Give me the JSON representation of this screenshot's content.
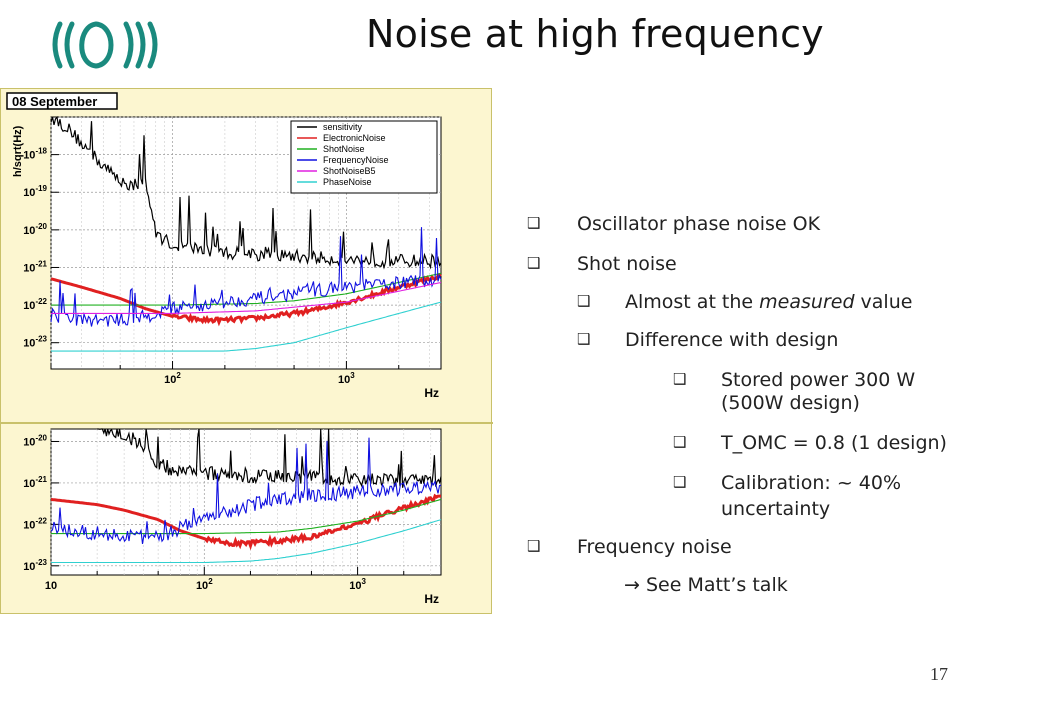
{
  "slide": {
    "title": "Noise at high frequency",
    "page_number": "17"
  },
  "bullets": [
    {
      "id": "b1",
      "level": 0,
      "text": "Oscillator phase noise OK"
    },
    {
      "id": "b2",
      "level": 0,
      "text": "Shot noise"
    },
    {
      "id": "b3",
      "level": 1,
      "text_pre": "Almost at the ",
      "text_em": "measured",
      "text_post": " value"
    },
    {
      "id": "b4",
      "level": 1,
      "text": "Difference with design"
    },
    {
      "id": "b5",
      "level": 2,
      "text": "Stored power 300 W",
      "text2": "(500W design)"
    },
    {
      "id": "b6",
      "level": 2,
      "text": "T_OMC = 0.8 (1 design)"
    },
    {
      "id": "b7",
      "level": 2,
      "text": "Calibration: ~ 40%",
      "text2": "uncertainty"
    },
    {
      "id": "b8",
      "level": 0,
      "text": "Frequency noise"
    },
    {
      "id": "b9",
      "level": 3,
      "text": "→ See Matt’s talk"
    }
  ],
  "chart_data": [
    {
      "type": "line",
      "title": "08 September",
      "xlabel": "Hz",
      "ylabel": "h/sqrt(Hz)",
      "xscale": "log",
      "yscale": "log",
      "xlim": [
        20,
        3500
      ],
      "ylim": [
        2e-24,
        1e-17
      ],
      "yticks": [
        "10^-18",
        "10^-19",
        "10^-20",
        "10^-21",
        "10^-22",
        "10^-23"
      ],
      "xticks": [
        "10^2",
        "10^3"
      ],
      "grid": true,
      "legend_position": "top-right",
      "series": [
        {
          "name": "sensitivity",
          "color": "#000000",
          "x": [
            20,
            25,
            30,
            40,
            50,
            60,
            70,
            80,
            100,
            150,
            200,
            300,
            500,
            700,
            1000,
            1500,
            2000,
            3000,
            3500
          ],
          "y": [
            1e-17,
            5e-18,
            2e-18,
            5e-19,
            2e-19,
            1.5e-19,
            2e-19,
            8e-21,
            4e-21,
            3e-21,
            2.5e-21,
            2.2e-21,
            2e-21,
            1.8e-21,
            1.6e-21,
            1.5e-21,
            1.5e-21,
            1.5e-21,
            1.6e-21
          ]
        },
        {
          "name": "ElectronicNoise",
          "color": "#e02020",
          "x": [
            20,
            30,
            50,
            70,
            100,
            150,
            200,
            300,
            500,
            700,
            1000,
            1500,
            2000,
            3000,
            3500
          ],
          "y": [
            5e-22,
            3e-22,
            1.5e-22,
            8e-23,
            5e-23,
            4e-23,
            4e-23,
            4.5e-23,
            6e-23,
            8e-23,
            1.2e-22,
            2e-22,
            3e-22,
            5e-22,
            6e-22
          ]
        },
        {
          "name": "ShotNoise",
          "color": "#20b020",
          "x": [
            20,
            100,
            300,
            500,
            1000,
            2000,
            3500
          ],
          "y": [
            1e-22,
            1e-22,
            1.1e-22,
            1.3e-22,
            2e-22,
            4e-22,
            7e-22
          ]
        },
        {
          "name": "FrequencyNoise",
          "color": "#1010e0",
          "x": [
            20,
            30,
            50,
            70,
            100,
            150,
            200,
            300,
            500,
            700,
            1000,
            1500,
            2000,
            3000,
            3500
          ],
          "y": [
            5e-23,
            4e-23,
            4e-23,
            5e-23,
            8e-23,
            1e-22,
            1.2e-22,
            1.5e-22,
            2e-22,
            2.5e-22,
            3e-22,
            3.5e-22,
            4e-22,
            4.5e-22,
            5e-22
          ]
        },
        {
          "name": "ShotNoiseB5",
          "color": "#e020e0",
          "x": [
            20,
            100,
            300,
            1000,
            3500
          ],
          "y": [
            6e-23,
            6e-23,
            7e-23,
            1.2e-22,
            4e-22
          ]
        },
        {
          "name": "PhaseNoise",
          "color": "#30d0d0",
          "x": [
            20,
            100,
            200,
            300,
            500,
            1000,
            2000,
            3500
          ],
          "y": [
            6e-24,
            6e-24,
            6e-24,
            7e-24,
            1e-23,
            2.5e-23,
            6e-23,
            1.2e-22
          ]
        }
      ]
    },
    {
      "type": "line",
      "xlabel": "Hz",
      "xscale": "log",
      "yscale": "log",
      "xlim": [
        10,
        3500
      ],
      "ylim": [
        6e-24,
        2e-20
      ],
      "yticks": [
        "10^-20",
        "10^-21",
        "10^-22",
        "10^-23"
      ],
      "xticks": [
        "10",
        "10^2",
        "10^3"
      ],
      "grid": true,
      "series": [
        {
          "color": "#000000",
          "x": [
            20,
            30,
            40,
            50,
            60,
            80,
            100,
            150,
            200,
            300,
            500,
            1000,
            2000,
            3500
          ],
          "y": [
            2e-20,
            1.5e-20,
            8e-21,
            3e-21,
            2e-21,
            2e-21,
            1.8e-21,
            1.6e-21,
            1.5e-21,
            1.5e-21,
            1.3e-21,
            1.2e-21,
            1.1e-21,
            1.2e-21
          ]
        },
        {
          "color": "#e02020",
          "x": [
            10,
            20,
            30,
            50,
            70,
            100,
            150,
            200,
            300,
            500,
            700,
            1000,
            1500,
            2000,
            3000,
            3500
          ],
          "y": [
            4e-22,
            3e-22,
            2.2e-22,
            1.3e-22,
            7e-23,
            4.5e-23,
            3.5e-23,
            3.5e-23,
            4e-23,
            5e-23,
            7e-23,
            1e-22,
            1.8e-22,
            2.5e-22,
            4e-22,
            5e-22
          ]
        },
        {
          "color": "#20b020",
          "x": [
            10,
            100,
            300,
            500,
            1000,
            2000,
            3500
          ],
          "y": [
            6e-23,
            6e-23,
            6.5e-23,
            8e-23,
            1.2e-22,
            2.2e-22,
            4e-22
          ]
        },
        {
          "color": "#1010e0",
          "x": [
            10,
            20,
            30,
            50,
            70,
            100,
            150,
            200,
            300,
            500,
            1000,
            2000,
            3500
          ],
          "y": [
            8e-23,
            6e-23,
            5e-23,
            5e-23,
            8e-23,
            1.5e-22,
            2e-22,
            3e-22,
            4e-22,
            5e-22,
            6e-22,
            7e-22,
            8e-22
          ]
        },
        {
          "color": "#30d0d0",
          "x": [
            10,
            100,
            200,
            300,
            500,
            1000,
            2000,
            3500
          ],
          "y": [
            1.2e-23,
            1.2e-23,
            1.3e-23,
            1.5e-23,
            2e-23,
            3.5e-23,
            7e-23,
            1.3e-22
          ]
        }
      ]
    }
  ],
  "colors": {
    "figure_background": "#fcf6d0",
    "plot_background": "#ffffff",
    "grid": "#bdbdbd"
  }
}
